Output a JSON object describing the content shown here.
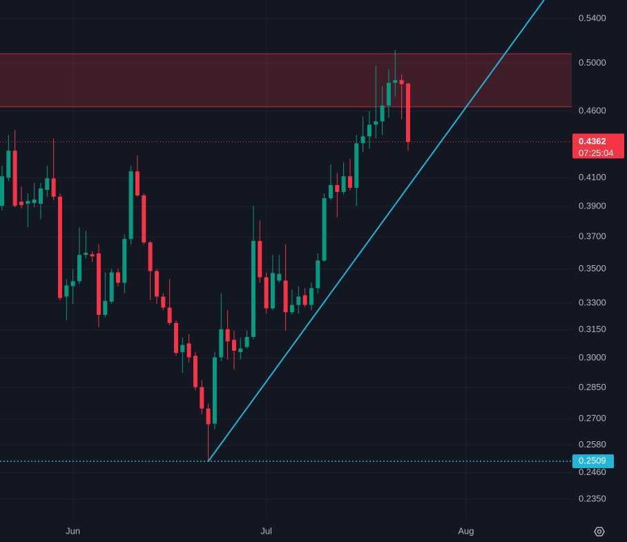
{
  "chart_data": {
    "type": "candlestick",
    "yscale": "log",
    "ylim": [
      0.2275,
      0.5577
    ],
    "yticks": [
      {
        "value": 0.54,
        "label": "0.5400"
      },
      {
        "value": 0.5,
        "label": "0.5000"
      },
      {
        "value": 0.46,
        "label": "0.4600"
      },
      {
        "value": 0.41,
        "label": "0.4100"
      },
      {
        "value": 0.39,
        "label": "0.3900"
      },
      {
        "value": 0.37,
        "label": "0.3700"
      },
      {
        "value": 0.35,
        "label": "0.3500"
      },
      {
        "value": 0.33,
        "label": "0.3300"
      },
      {
        "value": 0.315,
        "label": "0.3150"
      },
      {
        "value": 0.3,
        "label": "0.3000"
      },
      {
        "value": 0.285,
        "label": "0.2850"
      },
      {
        "value": 0.27,
        "label": "0.2700"
      },
      {
        "value": 0.258,
        "label": "0.2580"
      },
      {
        "value": 0.246,
        "label": "0.2460"
      },
      {
        "value": 0.235,
        "label": "0.2350"
      }
    ],
    "xlim": [
      -0.32,
      88.4
    ],
    "xticks": [
      {
        "value": 11,
        "label": "Jun"
      },
      {
        "value": 41,
        "label": "Jul"
      },
      {
        "value": 72,
        "label": "Aug"
      }
    ],
    "grid": true,
    "up_color": "#089981",
    "down_color": "#f23645",
    "open": [
      0.3905,
      0.41,
      0.4296,
      0.3933,
      0.3919,
      0.3924,
      0.3919,
      0.4014,
      0.4095,
      0.3967,
      0.3337,
      0.3398,
      0.3427,
      0.3587,
      0.3591,
      0.3596,
      0.3233,
      0.3308,
      0.348,
      0.3418,
      0.3687,
      0.4145,
      0.3976,
      0.3665,
      0.3488,
      0.3337,
      0.3274,
      0.3188,
      0.3031,
      0.3077,
      0.3012,
      0.2853,
      0.2749,
      0.2678,
      0.3004,
      0.3154,
      0.3096,
      0.3031,
      0.3058,
      0.3112,
      0.3674,
      0.3451,
      0.327,
      0.3431,
      0.3431,
      0.3248,
      0.3289,
      0.3345,
      0.3289,
      0.3386,
      0.3552,
      0.3957,
      0.4048,
      0.4,
      0.411,
      0.4029,
      0.4352,
      0.4404,
      0.4494,
      0.452,
      0.4646,
      0.4832,
      0.4855,
      0.4826
    ],
    "high": [
      0.4186,
      0.4415,
      0.4452,
      0.4038,
      0.399,
      0.4062,
      0.4062,
      0.4186,
      0.4389,
      0.399,
      0.3439,
      0.35,
      0.3762,
      0.374,
      0.3609,
      0.3652,
      0.348,
      0.35,
      0.35,
      0.3718,
      0.4186,
      0.4261,
      0.399,
      0.3674,
      0.35,
      0.3357,
      0.3439,
      0.3203,
      0.3108,
      0.3127,
      0.3031,
      0.2888,
      0.2772,
      0.3031,
      0.3357,
      0.3259,
      0.3146,
      0.3108,
      0.3146,
      0.3905,
      0.3807,
      0.348,
      0.3587,
      0.3587,
      0.3652,
      0.3378,
      0.3398,
      0.3386,
      0.3418,
      0.3596,
      0.399,
      0.4196,
      0.4135,
      0.4211,
      0.4236,
      0.4415,
      0.4558,
      0.46,
      0.4977,
      0.4803,
      0.4948,
      0.5113,
      0.4901,
      0.4832
    ],
    "low": [
      0.3873,
      0.4076,
      0.3896,
      0.3887,
      0.3762,
      0.3896,
      0.3816,
      0.3967,
      0.3943,
      0.3316,
      0.3203,
      0.3296,
      0.341,
      0.3565,
      0.3544,
      0.3165,
      0.3221,
      0.3296,
      0.3398,
      0.3357,
      0.3652,
      0.3967,
      0.3652,
      0.3316,
      0.3296,
      0.3259,
      0.3176,
      0.3012,
      0.2923,
      0.2976,
      0.2837,
      0.2723,
      0.2509,
      0.2653,
      0.2983,
      0.2993,
      0.2941,
      0.2993,
      0.305,
      0.31,
      0.3418,
      0.324,
      0.3259,
      0.3418,
      0.3146,
      0.3236,
      0.324,
      0.3278,
      0.3259,
      0.3357,
      0.3544,
      0.3943,
      0.3829,
      0.3981,
      0.401,
      0.3905,
      0.4286,
      0.4312,
      0.4389,
      0.4415,
      0.4547,
      0.4716,
      0.4536,
      0.4296
    ],
    "close": [
      0.411,
      0.4296,
      0.3905,
      0.391,
      0.3938,
      0.3948,
      0.4024,
      0.4095,
      0.3967,
      0.3329,
      0.3402,
      0.3427,
      0.3587,
      0.36,
      0.3578,
      0.3233,
      0.3312,
      0.348,
      0.3418,
      0.3687,
      0.4145,
      0.3976,
      0.3665,
      0.3488,
      0.3337,
      0.3274,
      0.3188,
      0.3027,
      0.3069,
      0.3004,
      0.2853,
      0.2749,
      0.2675,
      0.3004,
      0.3154,
      0.3088,
      0.3038,
      0.305,
      0.3112,
      0.3674,
      0.3451,
      0.327,
      0.3476,
      0.3471,
      0.3248,
      0.3289,
      0.3337,
      0.3289,
      0.3386,
      0.3552,
      0.3957,
      0.4048,
      0.4,
      0.411,
      0.4029,
      0.4352,
      0.4404,
      0.4494,
      0.452,
      0.4646,
      0.4832,
      0.4855,
      0.482,
      0.4362
    ],
    "zone": {
      "low": 0.4635,
      "high": 0.5081,
      "color": "#f23645"
    },
    "trendline": {
      "x": [
        32,
        84.1
      ],
      "y": [
        0.2509,
        0.5577
      ],
      "color": "#22b5d6"
    },
    "support": {
      "value": 0.2509,
      "color": "#22b5d6"
    },
    "last_price": {
      "value": 0.4362,
      "countdown": "07:25:04",
      "color": "#f23645"
    }
  }
}
